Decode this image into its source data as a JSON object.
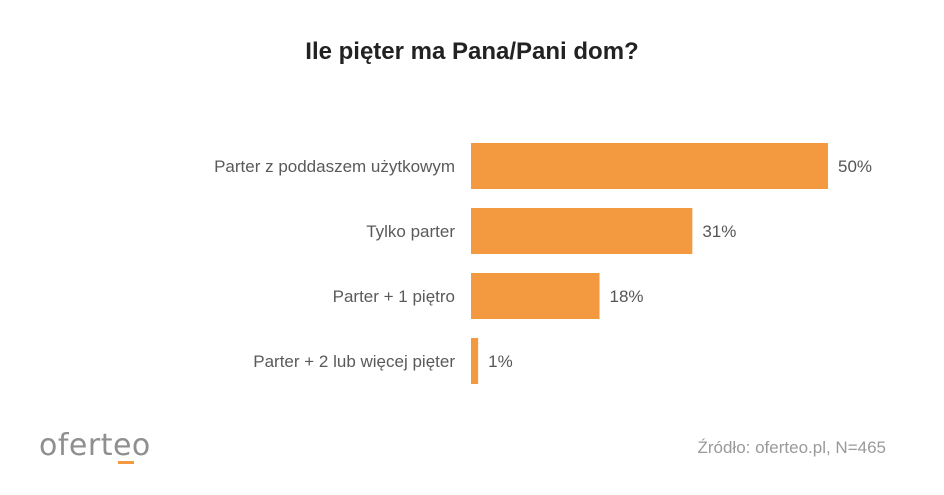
{
  "title": "Ile pięter ma Pana/Pani dom?",
  "source": "Źródło: oferteo.pl, N=465",
  "logo_text": "oferteo",
  "colors": {
    "bar": "#f39a41",
    "logo_accent": "#f39a41",
    "text": "#5a5a5a"
  },
  "chart_data": {
    "type": "bar",
    "orientation": "horizontal",
    "title": "Ile pięter ma Pana/Pani dom?",
    "categories": [
      "Parter z poddaszem użytkowym",
      "Tylko parter",
      "Parter + 1 piętro",
      "Parter + 2 lub więcej pięter"
    ],
    "values": [
      50,
      31,
      18,
      1
    ],
    "value_labels": [
      "50%",
      "31%",
      "18%",
      "1%"
    ],
    "unit": "%",
    "xlim": [
      0,
      50
    ],
    "grid": false,
    "legend": "none"
  }
}
